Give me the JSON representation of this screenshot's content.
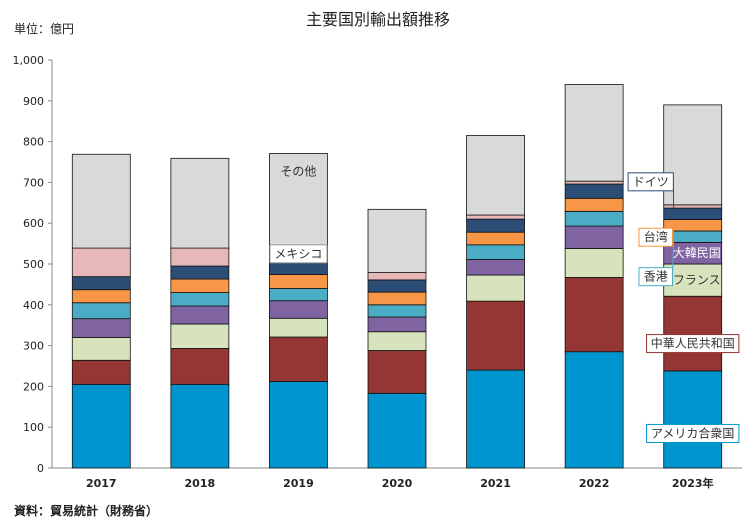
{
  "chart_data": {
    "type": "bar",
    "stacked": true,
    "title": "主要国別輸出額推移",
    "unit_label": "単位：億円",
    "source": "資料：貿易統計（財務省）",
    "categories": [
      "2017",
      "2018",
      "2019",
      "2020",
      "2021",
      "2022",
      "2023年"
    ],
    "ylim": [
      0,
      1000
    ],
    "yticks": [
      "0",
      "100",
      "200",
      "300",
      "400",
      "500",
      "600",
      "700",
      "800",
      "900",
      "1,000"
    ],
    "series": [
      {
        "name": "アメリカ合衆国",
        "color": "#0095CF",
        "values": [
          205,
          205,
          212,
          183,
          240,
          285,
          238
        ]
      },
      {
        "name": "中華人民共和国",
        "color": "#943634",
        "values": [
          59,
          88,
          109,
          105,
          169,
          182,
          183
        ]
      },
      {
        "name": "フランス",
        "color": "#D6E3BC",
        "values": [
          56,
          60,
          46,
          46,
          64,
          71,
          79
        ]
      },
      {
        "name": "大韓民国",
        "color": "#8064A2",
        "values": [
          46,
          44,
          43,
          36,
          38,
          55,
          53
        ]
      },
      {
        "name": "香港",
        "color": "#4BACC6",
        "values": [
          39,
          33,
          30,
          30,
          36,
          36,
          28
        ]
      },
      {
        "name": "台湾",
        "color": "#F79646",
        "values": [
          32,
          33,
          34,
          31,
          31,
          32,
          28
        ]
      },
      {
        "name": "ドイツ",
        "color": "#2C4D75",
        "values": [
          32,
          32,
          30,
          30,
          32,
          35,
          28
        ]
      },
      {
        "name": "メキシコ",
        "color": "#E6B9B8",
        "values": [
          70,
          44,
          42,
          18,
          10,
          7,
          8
        ]
      },
      {
        "name": "その他",
        "color": "#D9D9D9",
        "values": [
          230,
          220,
          225,
          155,
          195,
          237,
          245
        ]
      }
    ],
    "annotations": [
      {
        "text": "その他",
        "category": "2019",
        "series": "その他",
        "style": "plain"
      },
      {
        "text": "メキシコ",
        "category": "2019",
        "series": "メキシコ",
        "style": "boxed"
      },
      {
        "text": "ドイツ",
        "category": "2023年",
        "series": "ドイツ",
        "style": "callout",
        "border": "#2C4D75"
      },
      {
        "text": "台湾",
        "category": "2023年",
        "series": "台湾",
        "style": "callout",
        "border": "#F79646"
      },
      {
        "text": "香港",
        "category": "2023年",
        "series": "香港",
        "style": "callout",
        "border": "#4BACC6"
      },
      {
        "text": "大韓民国",
        "category": "2023年",
        "series": "大韓民国",
        "style": "inside",
        "text_color": "#ffffff"
      },
      {
        "text": "フランス",
        "category": "2023年",
        "series": "フランス",
        "style": "inside",
        "text_color": "#333333"
      },
      {
        "text": "中華人民共和国",
        "category": "2023年",
        "series": "中華人民共和国",
        "style": "boxed",
        "border": "#943634"
      },
      {
        "text": "アメリカ合衆国",
        "category": "2023年",
        "series": "アメリカ合衆国",
        "style": "boxed",
        "border": "#0095CF"
      }
    ]
  }
}
